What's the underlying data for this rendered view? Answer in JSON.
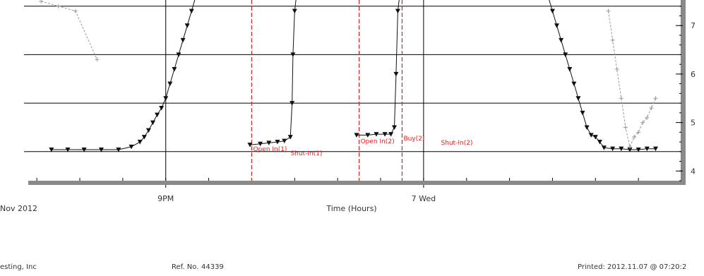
{
  "chart_data": {
    "type": "line",
    "xlabel": "Time (Hours)",
    "x_ticks": [
      {
        "label": "9PM",
        "x": 21
      },
      {
        "label": "7 Wed",
        "x": 24
      }
    ],
    "x_range": [
      19.4,
      27.0
    ],
    "date_caption": "Nov 2012",
    "left_axis": {
      "ylim": [
        -0.3,
        1.6
      ],
      "gridlines": [
        0.0,
        0.5,
        1.0,
        1.5
      ]
    },
    "right_axis": {
      "ylim": [
        3.8,
        7.6
      ],
      "ticks": [
        {
          "label": "4",
          "value": 4
        },
        {
          "label": "5",
          "value": 5
        },
        {
          "label": "6",
          "value": 6
        },
        {
          "label": "7",
          "value": 7
        }
      ],
      "minor_step": 0.2
    },
    "series": [
      {
        "color": "#111111",
        "axis": "left",
        "marker": "triangle-down",
        "segments": [
          [
            [
              19.67,
              0.02
            ],
            [
              19.86,
              0.02
            ],
            [
              20.05,
              0.02
            ],
            [
              20.25,
              0.02
            ],
            [
              20.45,
              0.02
            ],
            [
              20.6,
              0.05
            ],
            [
              20.7,
              0.1
            ],
            [
              20.75,
              0.15
            ],
            [
              20.8,
              0.22
            ],
            [
              20.85,
              0.3
            ],
            [
              20.9,
              0.38
            ],
            [
              20.95,
              0.45
            ],
            [
              21.0,
              0.55
            ],
            [
              21.05,
              0.7
            ],
            [
              21.1,
              0.85
            ],
            [
              21.15,
              1.0
            ],
            [
              21.2,
              1.15
            ],
            [
              21.25,
              1.3
            ],
            [
              21.3,
              1.45
            ],
            [
              21.35,
              1.6
            ]
          ],
          [
            [
              21.98,
              0.07
            ],
            [
              22.1,
              0.08
            ],
            [
              22.2,
              0.09
            ],
            [
              22.3,
              0.1
            ],
            [
              22.38,
              0.11
            ],
            [
              22.45,
              0.15
            ],
            [
              22.47,
              0.5
            ],
            [
              22.48,
              1.0
            ],
            [
              22.5,
              1.45
            ],
            [
              22.52,
              1.6
            ]
          ],
          [
            [
              23.22,
              0.17
            ],
            [
              23.35,
              0.17
            ],
            [
              23.45,
              0.18
            ],
            [
              23.55,
              0.18
            ],
            [
              23.62,
              0.18
            ],
            [
              23.66,
              0.25
            ],
            [
              23.68,
              0.8
            ],
            [
              23.7,
              1.45
            ],
            [
              23.72,
              1.6
            ]
          ],
          [
            [
              25.45,
              1.6
            ],
            [
              25.5,
              1.45
            ],
            [
              25.55,
              1.3
            ],
            [
              25.6,
              1.15
            ],
            [
              25.65,
              1.0
            ],
            [
              25.7,
              0.85
            ],
            [
              25.75,
              0.7
            ],
            [
              25.8,
              0.55
            ],
            [
              25.85,
              0.4
            ],
            [
              25.9,
              0.25
            ],
            [
              25.95,
              0.17
            ],
            [
              26.0,
              0.15
            ],
            [
              26.05,
              0.1
            ],
            [
              26.1,
              0.04
            ],
            [
              26.2,
              0.03
            ],
            [
              26.3,
              0.03
            ],
            [
              26.4,
              0.02
            ],
            [
              26.5,
              0.02
            ],
            [
              26.6,
              0.03
            ],
            [
              26.7,
              0.03
            ]
          ]
        ]
      },
      {
        "color": "#999999",
        "axis": "left",
        "marker": "cross",
        "segments": [
          [
            [
              19.55,
              1.55
            ],
            [
              19.75,
              1.5
            ],
            [
              19.95,
              1.45
            ],
            [
              20.2,
              0.95
            ]
          ],
          [
            [
              26.15,
              1.45
            ],
            [
              26.2,
              1.15
            ],
            [
              26.25,
              0.85
            ],
            [
              26.3,
              0.55
            ],
            [
              26.35,
              0.25
            ],
            [
              26.4,
              0.05
            ],
            [
              26.45,
              0.15
            ],
            [
              26.5,
              0.2
            ],
            [
              26.55,
              0.3
            ],
            [
              26.6,
              0.35
            ],
            [
              26.65,
              0.45
            ],
            [
              26.7,
              0.55
            ]
          ]
        ]
      }
    ],
    "event_lines": [
      {
        "x": 22.0,
        "label_text": "Open In(1)",
        "label2_text": "Shut-In(1)"
      },
      {
        "x": 23.25,
        "label_text": "Open In(2)",
        "label2_text": ""
      },
      {
        "x": 23.75,
        "label_text": "Buy(2)",
        "label2_text": "Shut-In(2)"
      }
    ]
  },
  "footer": {
    "company": "esting, Inc",
    "ref_label": "Ref. No.",
    "ref_value": "44339",
    "printed": "Printed: 2012.11.07 @ 07:20:2"
  }
}
